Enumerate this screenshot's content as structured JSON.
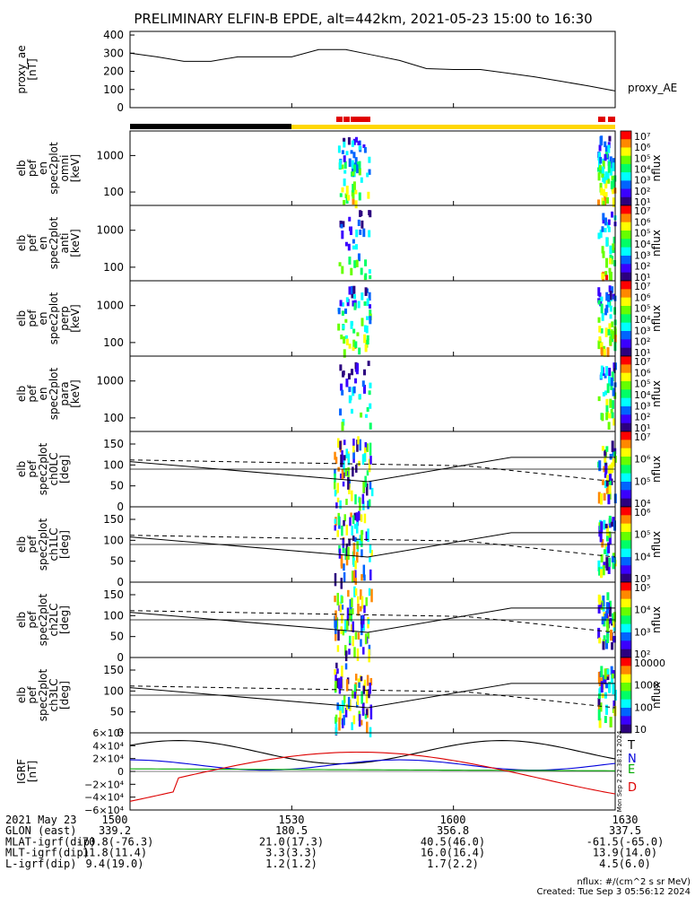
{
  "title": "PRELIMINARY ELFIN-B EPDE, alt=442km, 2021-05-23 15:00 to 16:30",
  "ae_panel": {
    "ylabel": [
      "proxy_ae",
      "[nT]"
    ],
    "yticks": [
      "400",
      "300",
      "200",
      "100",
      "0"
    ],
    "ylim": [
      0,
      420
    ],
    "legend": "proxy_AE"
  },
  "spec_panels": [
    {
      "ylabel": [
        "elb",
        "pef",
        "en",
        "spec2plot",
        "omni",
        "[keV]"
      ],
      "yticks": [
        "1000",
        "100"
      ],
      "cbar_ticks": [
        "10⁷",
        "10⁶",
        "10⁵",
        "10⁴",
        "10³",
        "10²",
        "10¹"
      ],
      "cbar_label": "nflux"
    },
    {
      "ylabel": [
        "elb",
        "pef",
        "en",
        "spec2plot",
        "anti",
        "[keV]"
      ],
      "yticks": [
        "1000",
        "100"
      ],
      "cbar_ticks": [
        "10⁷",
        "10⁶",
        "10⁵",
        "10⁴",
        "10³",
        "10²",
        "10¹"
      ],
      "cbar_label": "nflux"
    },
    {
      "ylabel": [
        "elb",
        "pef",
        "en",
        "spec2plot",
        "perp",
        "[keV]"
      ],
      "yticks": [
        "1000",
        "100"
      ],
      "cbar_ticks": [
        "10⁷",
        "10⁶",
        "10⁵",
        "10⁴",
        "10³",
        "10²",
        "10¹"
      ],
      "cbar_label": "nflux"
    },
    {
      "ylabel": [
        "elb",
        "pef",
        "en",
        "spec2plot",
        "para",
        "[keV]"
      ],
      "yticks": [
        "1000",
        "100"
      ],
      "cbar_ticks": [
        "10⁷",
        "10⁶",
        "10⁵",
        "10⁴",
        "10³",
        "10²",
        "10¹"
      ],
      "cbar_label": "nflux"
    }
  ],
  "pa_panels": [
    {
      "ylabel": [
        "elb",
        "pef",
        "spec2plot",
        "ch0LC",
        "[deg]"
      ],
      "yticks": [
        "150",
        "100",
        "50",
        "0"
      ],
      "cbar_ticks": [
        "10⁷",
        "10⁶",
        "10⁵",
        "10⁴"
      ],
      "cbar_label": "nflux"
    },
    {
      "ylabel": [
        "elb",
        "pef",
        "spec2plot",
        "ch1LC",
        "[deg]"
      ],
      "yticks": [
        "150",
        "100",
        "50",
        "0"
      ],
      "cbar_ticks": [
        "10⁶",
        "10⁵",
        "10⁴",
        "10³"
      ],
      "cbar_label": "nflux"
    },
    {
      "ylabel": [
        "elb",
        "pef",
        "spec2plot",
        "ch2LC",
        "[deg]"
      ],
      "yticks": [
        "150",
        "100",
        "50",
        "0"
      ],
      "cbar_ticks": [
        "10⁵",
        "10⁴",
        "10³",
        "10²"
      ],
      "cbar_label": "nflux"
    },
    {
      "ylabel": [
        "elb",
        "pef",
        "spec2plot",
        "ch3LC",
        "[deg]"
      ],
      "yticks": [
        "150",
        "100",
        "50",
        "0"
      ],
      "cbar_ticks": [
        "10000",
        "1000",
        "100",
        "10"
      ],
      "cbar_label": "nflux"
    }
  ],
  "igrf_panel": {
    "ylabel": [
      "IGRF",
      "[nT]"
    ],
    "yticks": [
      "6×10⁴",
      "4×10⁴",
      "2×10⁴",
      "0",
      "−2×10⁴",
      "−4×10⁴",
      "−6×10⁴"
    ],
    "ylim": [
      -60000,
      60000
    ],
    "legend": [
      {
        "label": "T",
        "color": "#000000"
      },
      {
        "label": "N",
        "color": "#0000dd"
      },
      {
        "label": "E",
        "color": "#00aa00"
      },
      {
        "label": "D",
        "color": "#dd0000"
      }
    ],
    "side_text": "Mon Sep 2 22:38:12 2024"
  },
  "colors": {
    "jet": [
      "#2c007f",
      "#3a00ff",
      "#0064ff",
      "#00ffff",
      "#00ff66",
      "#66ff00",
      "#ffff00",
      "#ff8800",
      "#ff0000"
    ],
    "bar_yellow": "#ffd700",
    "bar_black": "#000000",
    "bar_red": "#e00000"
  },
  "footer": {
    "rows": [
      {
        "label": "2021 May 23",
        "values": [
          "1500",
          "1530",
          "1600",
          "1630"
        ]
      },
      {
        "label": "GLON (east)",
        "values": [
          "339.2",
          "180.5",
          "356.8",
          "337.5"
        ]
      },
      {
        "label": "MLAT-igrf(dip)",
        "values": [
          "-70.8(-76.3)",
          "21.0(17.3)",
          "40.5(46.0)",
          "-61.5(-65.0)"
        ]
      },
      {
        "label": "MLT-igrf(dip)",
        "values": [
          "11.8(11.4)",
          "3.3(3.3)",
          "16.0(16.4)",
          "13.9(14.0)"
        ]
      },
      {
        "label": "L-igrf(dip)",
        "values": [
          "9.4(19.0)",
          "1.2(1.2)",
          "1.7(2.2)",
          "4.5(6.0)"
        ]
      }
    ],
    "units": "nflux: #/(cm^2 s sr MeV)",
    "created": "Created: Tue Sep  3 05:56:12 2024"
  },
  "chart_data": [
    {
      "type": "line",
      "ylabel": "proxy_ae [nT]",
      "x_minutes": [
        0,
        5,
        10,
        15,
        20,
        25,
        30,
        35,
        40,
        45,
        50,
        55,
        60,
        65,
        70,
        75,
        80,
        85,
        90
      ],
      "series": [
        {
          "name": "proxy_AE",
          "values": [
            300,
            280,
            255,
            255,
            280,
            280,
            280,
            320,
            320,
            290,
            260,
            215,
            210,
            210,
            190,
            170,
            145,
            120,
            92
          ]
        }
      ],
      "ylim": [
        0,
        420
      ]
    },
    {
      "type": "heatmap",
      "ylabel": "energy [keV]",
      "x_range": [
        "15:00",
        "16:30"
      ],
      "yscale": "log"
    },
    {
      "type": "line",
      "ylabel": "IGRF [nT]",
      "series": [
        {
          "name": "T"
        },
        {
          "name": "N"
        },
        {
          "name": "E"
        },
        {
          "name": "D"
        }
      ],
      "ylim": [
        -60000,
        60000
      ]
    }
  ]
}
